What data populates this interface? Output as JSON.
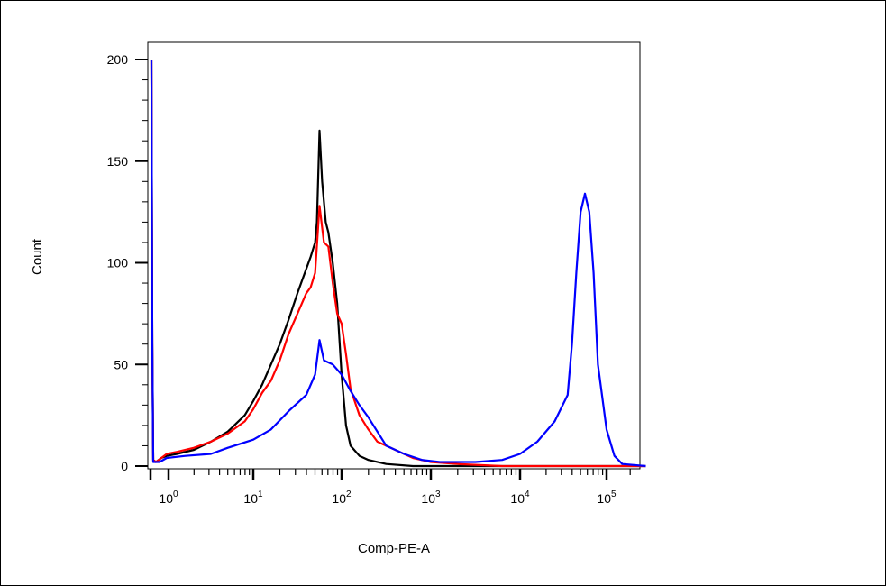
{
  "chart_data": {
    "type": "line",
    "title": "",
    "xlabel": "Comp-PE-A",
    "ylabel": "Count",
    "x_scale": "biexponential",
    "xlim": [
      -1,
      6
    ],
    "ylim": [
      0,
      210
    ],
    "y_ticks": [
      0,
      50,
      100,
      150,
      200
    ],
    "y_tick_labels": [
      "0",
      "50",
      "100",
      "150",
      "200"
    ],
    "x_ticks": [
      1,
      10,
      100,
      1000,
      10000,
      100000
    ],
    "x_tick_base": "10",
    "x_tick_exponents": [
      "0",
      "1",
      "2",
      "3",
      "4",
      "5"
    ],
    "grid": false,
    "legend": "none",
    "series": [
      {
        "color": "#000000",
        "points": [
          [
            -0.95,
            200
          ],
          [
            -0.9,
            60
          ],
          [
            -0.85,
            3
          ],
          [
            -0.7,
            2
          ],
          [
            -0.4,
            4
          ],
          [
            -0.1,
            5
          ],
          [
            0.1,
            6
          ],
          [
            0.3,
            8
          ],
          [
            0.5,
            12
          ],
          [
            0.7,
            17
          ],
          [
            0.9,
            25
          ],
          [
            1.0,
            32
          ],
          [
            1.1,
            40
          ],
          [
            1.2,
            50
          ],
          [
            1.3,
            60
          ],
          [
            1.4,
            72
          ],
          [
            1.5,
            85
          ],
          [
            1.6,
            97
          ],
          [
            1.65,
            103
          ],
          [
            1.7,
            110
          ],
          [
            1.72,
            120
          ],
          [
            1.75,
            165
          ],
          [
            1.78,
            140
          ],
          [
            1.82,
            120
          ],
          [
            1.85,
            115
          ],
          [
            1.9,
            100
          ],
          [
            1.95,
            80
          ],
          [
            2.0,
            45
          ],
          [
            2.05,
            20
          ],
          [
            2.1,
            10
          ],
          [
            2.2,
            5
          ],
          [
            2.3,
            3
          ],
          [
            2.5,
            1
          ],
          [
            2.8,
            0
          ],
          [
            3.2,
            0
          ],
          [
            4.0,
            0
          ],
          [
            5.0,
            0
          ],
          [
            5.5,
            0
          ]
        ]
      },
      {
        "color": "#ff0000",
        "points": [
          [
            -0.95,
            200
          ],
          [
            -0.9,
            60
          ],
          [
            -0.85,
            3
          ],
          [
            -0.7,
            2
          ],
          [
            -0.4,
            4
          ],
          [
            -0.1,
            6
          ],
          [
            0.1,
            7
          ],
          [
            0.3,
            9
          ],
          [
            0.5,
            12
          ],
          [
            0.7,
            16
          ],
          [
            0.9,
            22
          ],
          [
            1.0,
            28
          ],
          [
            1.1,
            36
          ],
          [
            1.2,
            42
          ],
          [
            1.3,
            52
          ],
          [
            1.4,
            65
          ],
          [
            1.5,
            75
          ],
          [
            1.6,
            85
          ],
          [
            1.65,
            88
          ],
          [
            1.7,
            95
          ],
          [
            1.75,
            128
          ],
          [
            1.8,
            110
          ],
          [
            1.85,
            108
          ],
          [
            1.9,
            90
          ],
          [
            1.95,
            75
          ],
          [
            2.0,
            70
          ],
          [
            2.05,
            55
          ],
          [
            2.1,
            38
          ],
          [
            2.2,
            25
          ],
          [
            2.3,
            18
          ],
          [
            2.4,
            12
          ],
          [
            2.6,
            8
          ],
          [
            2.8,
            4
          ],
          [
            3.0,
            2
          ],
          [
            3.3,
            1
          ],
          [
            3.8,
            0
          ],
          [
            4.5,
            0
          ],
          [
            5.5,
            0
          ]
        ]
      },
      {
        "color": "#0000ff",
        "points": [
          [
            -0.95,
            200
          ],
          [
            -0.9,
            60
          ],
          [
            -0.85,
            2
          ],
          [
            -0.5,
            2
          ],
          [
            -0.1,
            4
          ],
          [
            0.2,
            5
          ],
          [
            0.5,
            6
          ],
          [
            0.7,
            9
          ],
          [
            1.0,
            13
          ],
          [
            1.2,
            18
          ],
          [
            1.4,
            27
          ],
          [
            1.6,
            35
          ],
          [
            1.7,
            45
          ],
          [
            1.75,
            62
          ],
          [
            1.8,
            52
          ],
          [
            1.9,
            50
          ],
          [
            2.0,
            45
          ],
          [
            2.1,
            37
          ],
          [
            2.2,
            30
          ],
          [
            2.3,
            24
          ],
          [
            2.4,
            17
          ],
          [
            2.5,
            10
          ],
          [
            2.7,
            6
          ],
          [
            2.9,
            3
          ],
          [
            3.1,
            2
          ],
          [
            3.5,
            2
          ],
          [
            3.8,
            3
          ],
          [
            4.0,
            6
          ],
          [
            4.2,
            12
          ],
          [
            4.4,
            22
          ],
          [
            4.55,
            35
          ],
          [
            4.6,
            60
          ],
          [
            4.65,
            95
          ],
          [
            4.7,
            125
          ],
          [
            4.75,
            134
          ],
          [
            4.8,
            125
          ],
          [
            4.85,
            95
          ],
          [
            4.9,
            50
          ],
          [
            5.0,
            18
          ],
          [
            5.1,
            5
          ],
          [
            5.2,
            1
          ],
          [
            5.5,
            0
          ]
        ]
      }
    ]
  }
}
